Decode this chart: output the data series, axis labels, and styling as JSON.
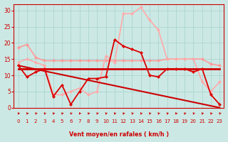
{
  "background_color": "#cce8e4",
  "grid_color": "#b0d8d4",
  "xlabel": "Vent moyen/en rafales ( km/h )",
  "xlabel_color": "#cc0000",
  "tick_color": "#cc0000",
  "xlim": [
    -0.5,
    23.5
  ],
  "ylim": [
    0,
    32
  ],
  "xticks": [
    0,
    1,
    2,
    3,
    4,
    5,
    6,
    7,
    8,
    9,
    10,
    11,
    12,
    13,
    14,
    15,
    16,
    17,
    18,
    19,
    20,
    21,
    22,
    23
  ],
  "yticks": [
    0,
    5,
    10,
    15,
    20,
    25,
    30
  ],
  "series": [
    {
      "name": "light_pink_top",
      "x": [
        0,
        1,
        2,
        3,
        4,
        5,
        6,
        7,
        8,
        9,
        10,
        11,
        12,
        13,
        14,
        15,
        16,
        17,
        18,
        19,
        20,
        21,
        22,
        23
      ],
      "y": [
        18.5,
        19.5,
        15.5,
        14.5,
        14.5,
        14.5,
        14.5,
        14.5,
        14.5,
        14.5,
        14.5,
        14.5,
        14.5,
        14.5,
        14.5,
        14.5,
        14.5,
        15,
        15,
        15,
        15,
        15,
        13.5,
        13
      ],
      "color": "#ff9999",
      "lw": 1.2,
      "ms": 2.5,
      "marker": "D",
      "zorder": 2
    },
    {
      "name": "flat_dark_red",
      "x": [
        0,
        1,
        2,
        3,
        4,
        5,
        6,
        7,
        8,
        9,
        10,
        11,
        12,
        13,
        14,
        15,
        16,
        17,
        18,
        19,
        20,
        21,
        22,
        23
      ],
      "y": [
        12,
        12,
        12,
        12,
        12,
        12,
        12,
        12,
        12,
        12,
        12,
        12,
        12,
        12,
        12,
        12,
        12,
        12,
        12,
        12,
        12,
        12,
        12,
        12
      ],
      "color": "#cc0000",
      "lw": 2.0,
      "ms": 0,
      "marker": null,
      "zorder": 4
    },
    {
      "name": "diagonal_descending",
      "x": [
        0,
        23
      ],
      "y": [
        13,
        0
      ],
      "color": "#cc0000",
      "lw": 1.5,
      "ms": 0,
      "marker": null,
      "zorder": 3
    },
    {
      "name": "light_pink_volatile",
      "x": [
        0,
        1,
        2,
        3,
        4,
        5,
        6,
        7,
        8,
        9,
        10,
        11,
        12,
        13,
        14,
        15,
        16,
        17,
        18,
        19,
        20,
        21,
        22,
        23
      ],
      "y": [
        14,
        15,
        14,
        13,
        4,
        4,
        5,
        6,
        4,
        5,
        16,
        14,
        29,
        29,
        31,
        27,
        24,
        15,
        15,
        15,
        15,
        8,
        5,
        8
      ],
      "color": "#ffaaaa",
      "lw": 1.2,
      "ms": 2.5,
      "marker": "D",
      "zorder": 2
    },
    {
      "name": "red_volatile",
      "x": [
        0,
        1,
        2,
        3,
        4,
        5,
        6,
        7,
        8,
        9,
        10,
        11,
        12,
        13,
        14,
        15,
        16,
        17,
        18,
        19,
        20,
        21,
        22,
        23
      ],
      "y": [
        13,
        9.5,
        11,
        12,
        3.5,
        7,
        1,
        5,
        9,
        9,
        9.5,
        21,
        19,
        18,
        17,
        10,
        9.5,
        12,
        12,
        12,
        11,
        12,
        4,
        1
      ],
      "color": "#dd0000",
      "lw": 1.3,
      "ms": 2.5,
      "marker": "D",
      "zorder": 5
    }
  ],
  "arrow_ticks": true
}
